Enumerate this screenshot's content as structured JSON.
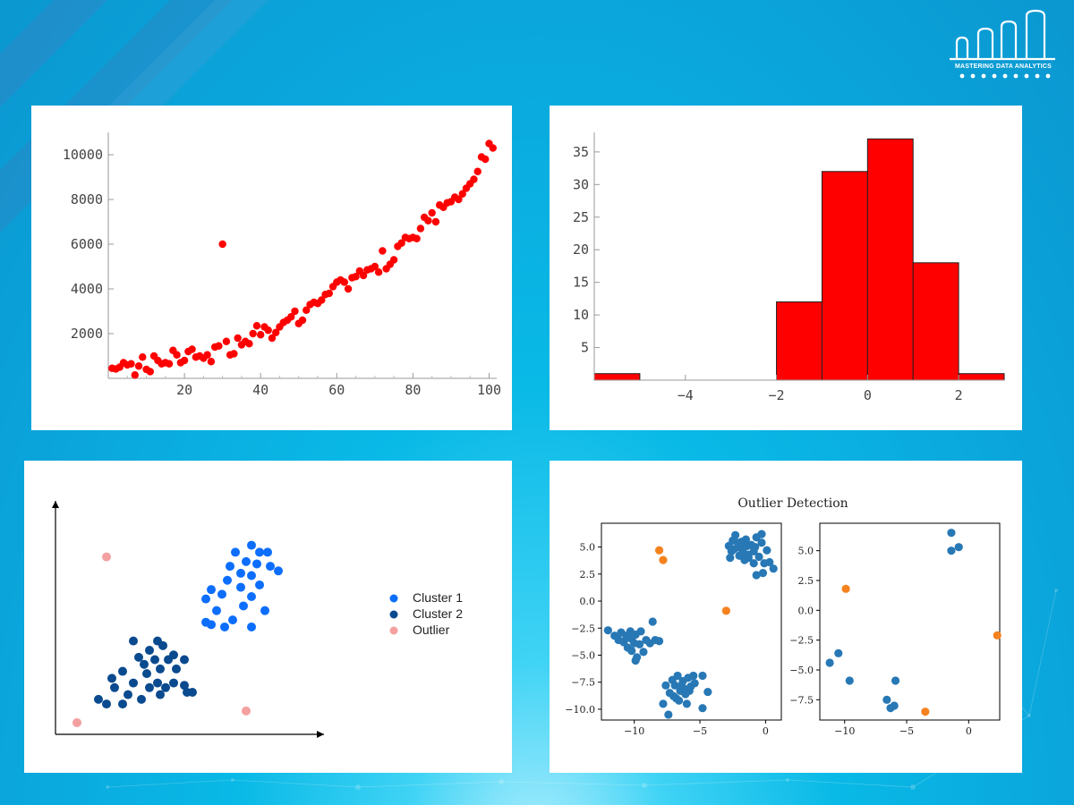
{
  "logo": {
    "text": "MASTERING DATA ANALYTICS"
  },
  "colors": {
    "red": "#ff0000",
    "blue1": "#0d6efd",
    "blue2": "#0a4a8e",
    "pink": "#f4a0a0",
    "tab_blue": "#2878b5",
    "tab_orange": "#f5821f"
  },
  "chart_data": [
    {
      "type": "scatter",
      "xlim": [
        0,
        102
      ],
      "ylim": [
        0,
        11000
      ],
      "xticks": [
        "20",
        "40",
        "60",
        "80",
        "100"
      ],
      "yticks": [
        "2000",
        "4000",
        "6000",
        "8000",
        "10000"
      ],
      "x": [
        1,
        2,
        3,
        4,
        5,
        6,
        7,
        8,
        9,
        10,
        11,
        12,
        13,
        14,
        15,
        16,
        17,
        18,
        19,
        20,
        21,
        22,
        23,
        24,
        25,
        26,
        27,
        28,
        29,
        30,
        31,
        32,
        33,
        34,
        35,
        36,
        37,
        38,
        39,
        40,
        41,
        42,
        43,
        44,
        45,
        46,
        47,
        48,
        49,
        50,
        51,
        52,
        53,
        54,
        55,
        56,
        57,
        58,
        59,
        60,
        61,
        62,
        63,
        64,
        65,
        66,
        67,
        68,
        69,
        70,
        71,
        72,
        73,
        74,
        75,
        76,
        77,
        78,
        79,
        80,
        81,
        82,
        83,
        84,
        85,
        86,
        87,
        88,
        89,
        90,
        91,
        92,
        93,
        94,
        95,
        96,
        97,
        98,
        99,
        100,
        101
      ],
      "y": [
        450,
        420,
        500,
        700,
        600,
        650,
        150,
        550,
        950,
        400,
        300,
        1000,
        800,
        650,
        700,
        650,
        1250,
        1050,
        700,
        800,
        1200,
        1300,
        950,
        1000,
        900,
        1050,
        750,
        1400,
        1450,
        6000,
        1650,
        1050,
        1100,
        1800,
        1500,
        1650,
        1550,
        2000,
        2350,
        1950,
        2300,
        2150,
        1800,
        2050,
        2300,
        2500,
        2600,
        2750,
        3000,
        2450,
        2600,
        3050,
        3300,
        3400,
        3350,
        3500,
        3750,
        3800,
        4100,
        4300,
        4400,
        4300,
        4000,
        4500,
        4550,
        4800,
        4600,
        4850,
        4900,
        5000,
        4750,
        5700,
        4900,
        5100,
        5300,
        5900,
        6050,
        6300,
        6250,
        6300,
        6250,
        6700,
        7200,
        7050,
        7400,
        7000,
        7750,
        7650,
        7850,
        7900,
        8100,
        8000,
        8250,
        8500,
        8700,
        8900,
        9250,
        9900,
        9800,
        10500,
        10300
      ]
    },
    {
      "type": "bar",
      "xlim": [
        -6,
        3
      ],
      "ylim": [
        0,
        38
      ],
      "xticks": [
        "−4",
        "−2",
        "0",
        "2"
      ],
      "yticks": [
        "5",
        "10",
        "15",
        "20",
        "25",
        "30",
        "35"
      ],
      "bins": [
        [
          -6,
          -5,
          1
        ],
        [
          -5,
          -4,
          0
        ],
        [
          -4,
          -3,
          0
        ],
        [
          -3,
          -2,
          0
        ],
        [
          -2,
          -1,
          12
        ],
        [
          -1,
          0,
          32
        ],
        [
          0,
          1,
          37
        ],
        [
          1,
          2,
          18
        ],
        [
          2,
          3,
          1
        ]
      ]
    },
    {
      "type": "scatter",
      "legend": [
        "Cluster 1",
        "Cluster 2",
        "Outlier"
      ],
      "legend_position": "right",
      "xlim": [
        0,
        10
      ],
      "ylim": [
        0,
        10
      ],
      "series": [
        {
          "name": "Cluster 1",
          "color": "#0d6efd",
          "points": [
            [
              7.3,
              8.1
            ],
            [
              6.7,
              7.8
            ],
            [
              7.6,
              7.8
            ],
            [
              7.9,
              7.8
            ],
            [
              6.5,
              7.2
            ],
            [
              7.1,
              7.4
            ],
            [
              7.5,
              7.3
            ],
            [
              8.0,
              7.2
            ],
            [
              6.9,
              6.9
            ],
            [
              7.3,
              6.8
            ],
            [
              8.3,
              7.0
            ],
            [
              6.4,
              6.6
            ],
            [
              7.6,
              6.4
            ],
            [
              5.8,
              6.2
            ],
            [
              6.9,
              6.3
            ],
            [
              6.2,
              6.0
            ],
            [
              7.3,
              5.9
            ],
            [
              7.0,
              5.5
            ],
            [
              6.0,
              5.3
            ],
            [
              5.8,
              4.7
            ],
            [
              6.6,
              4.9
            ],
            [
              7.8,
              5.3
            ],
            [
              5.6,
              5.8
            ],
            [
              5.6,
              4.8
            ],
            [
              6.3,
              4.6
            ],
            [
              7.3,
              4.6
            ]
          ]
        },
        {
          "name": "Cluster 2",
          "color": "#0a4a8e",
          "points": [
            [
              2.9,
              4.0
            ],
            [
              3.8,
              4.0
            ],
            [
              4.0,
              3.8
            ],
            [
              3.5,
              3.6
            ],
            [
              4.4,
              3.4
            ],
            [
              3.1,
              3.3
            ],
            [
              3.7,
              3.2
            ],
            [
              4.2,
              3.2
            ],
            [
              4.8,
              3.2
            ],
            [
              3.3,
              3.0
            ],
            [
              3.9,
              2.8
            ],
            [
              4.5,
              2.8
            ],
            [
              2.5,
              2.7
            ],
            [
              3.4,
              2.6
            ],
            [
              2.1,
              2.4
            ],
            [
              3.8,
              2.2
            ],
            [
              2.9,
              2.2
            ],
            [
              4.4,
              2.2
            ],
            [
              4.8,
              2.1
            ],
            [
              2.2,
              2.0
            ],
            [
              3.5,
              2.0
            ],
            [
              4.1,
              2.0
            ],
            [
              4.9,
              1.8
            ],
            [
              5.1,
              1.8
            ],
            [
              2.7,
              1.7
            ],
            [
              3.9,
              1.7
            ],
            [
              1.6,
              1.5
            ],
            [
              3.2,
              1.5
            ],
            [
              1.9,
              1.3
            ],
            [
              2.5,
              1.3
            ]
          ]
        },
        {
          "name": "Outlier",
          "color": "#f4a0a0",
          "points": [
            [
              1.9,
              7.6
            ],
            [
              7.1,
              1.0
            ],
            [
              0.8,
              0.5
            ]
          ]
        }
      ]
    },
    {
      "type": "scatter",
      "title": "Outlier Detection",
      "subplots": [
        {
          "xlim": [
            -12.5,
            1.2
          ],
          "ylim": [
            -11,
            7.2
          ],
          "xticks": [
            "−10",
            "−5",
            "0"
          ],
          "yticks": [
            "5.0",
            "2.5",
            "0.0",
            "−2.5",
            "−5.0",
            "−7.5",
            "−10.0"
          ],
          "normal": [
            [
              -12,
              -2.7
            ],
            [
              -11.5,
              -3.2
            ],
            [
              -11.2,
              -3.6
            ],
            [
              -11,
              -2.9
            ],
            [
              -10.8,
              -3.8
            ],
            [
              -10.6,
              -3.2
            ],
            [
              -10.5,
              -4.3
            ],
            [
              -10.3,
              -2.8
            ],
            [
              -10.2,
              -3.5
            ],
            [
              -10.2,
              -4.6
            ],
            [
              -10,
              -3.9
            ],
            [
              -9.9,
              -3.1
            ],
            [
              -9.8,
              -5.2
            ],
            [
              -9.6,
              -4.0
            ],
            [
              -9.5,
              -2.8
            ],
            [
              -9.3,
              -4.7
            ],
            [
              -9.1,
              -3.6
            ],
            [
              -8.8,
              -3.9
            ],
            [
              -8.6,
              -1.9
            ],
            [
              -8.4,
              -3.6
            ],
            [
              -8.1,
              -3.7
            ],
            [
              -9.9,
              -5.5
            ],
            [
              -10.6,
              -3.4
            ],
            [
              -11.3,
              -3.3
            ],
            [
              -7.6,
              -7.8
            ],
            [
              -7.1,
              -7.3
            ],
            [
              -6.9,
              -7.8
            ],
            [
              -6.7,
              -6.9
            ],
            [
              -6.5,
              -8.3
            ],
            [
              -6.3,
              -7.4
            ],
            [
              -6.1,
              -8.6
            ],
            [
              -5.9,
              -7.1
            ],
            [
              -5.7,
              -7.9
            ],
            [
              -5.5,
              -6.9
            ],
            [
              -5.4,
              -7.6
            ],
            [
              -7.3,
              -8.5
            ],
            [
              -7.0,
              -8.8
            ],
            [
              -6.6,
              -9.2
            ],
            [
              -6.2,
              -8.1
            ],
            [
              -5.8,
              -8.3
            ],
            [
              -7.8,
              -9.5
            ],
            [
              -7.4,
              -10.5
            ],
            [
              -6.8,
              -9.0
            ],
            [
              -4.8,
              -6.9
            ],
            [
              -4.8,
              -9.9
            ],
            [
              -4.4,
              -8.4
            ],
            [
              -6.0,
              -9.5
            ],
            [
              -6.4,
              -7.8
            ],
            [
              -2.8,
              5.1
            ],
            [
              -2.5,
              5.6
            ],
            [
              -2.3,
              6.1
            ],
            [
              -2.1,
              5.4
            ],
            [
              -1.9,
              4.9
            ],
            [
              -1.7,
              4.5
            ],
            [
              -1.5,
              5.7
            ],
            [
              -1.3,
              4.3
            ],
            [
              -1.1,
              5.2
            ],
            [
              -0.9,
              4.6
            ],
            [
              -0.7,
              5.9
            ],
            [
              -0.5,
              4.1
            ],
            [
              -0.3,
              5.4
            ],
            [
              -0.1,
              3.5
            ],
            [
              0.1,
              4.7
            ],
            [
              0.3,
              3.6
            ],
            [
              0.6,
              3.0
            ],
            [
              -0.7,
              2.4
            ],
            [
              -0.2,
              2.6
            ],
            [
              -2.7,
              4.0
            ],
            [
              -2.6,
              4.6
            ],
            [
              -2.0,
              4.2
            ],
            [
              -1.6,
              3.8
            ],
            [
              -1.3,
              4.0
            ],
            [
              -0.9,
              3.5
            ],
            [
              -0.3,
              6.2
            ],
            [
              -1.8,
              5.5
            ],
            [
              -2.4,
              4.8
            ],
            [
              -1.4,
              5.1
            ],
            [
              -0.8,
              5.0
            ]
          ],
          "outliers": [
            [
              -8.1,
              4.7
            ],
            [
              -7.8,
              3.8
            ],
            [
              -3.0,
              -0.9
            ]
          ]
        },
        {
          "xlim": [
            -12,
            2.5
          ],
          "ylim": [
            -9.2,
            7.3
          ],
          "xticks": [
            "−10",
            "−5",
            "0"
          ],
          "yticks": [
            "5.0",
            "2.5",
            "0.0",
            "−2.5",
            "−5.0",
            "−7.5"
          ],
          "normal": [
            [
              -11.2,
              -4.4
            ],
            [
              -10.5,
              -3.6
            ],
            [
              -9.6,
              -5.9
            ],
            [
              -6.6,
              -7.5
            ],
            [
              -6.3,
              -8.2
            ],
            [
              -6.0,
              -8.0
            ],
            [
              -5.9,
              -5.9
            ],
            [
              -1.4,
              6.5
            ],
            [
              -1.4,
              5.0
            ],
            [
              -0.8,
              5.3
            ]
          ],
          "outliers": [
            [
              -9.9,
              1.8
            ],
            [
              -3.5,
              -8.5
            ],
            [
              2.3,
              -2.1
            ]
          ]
        }
      ]
    }
  ]
}
